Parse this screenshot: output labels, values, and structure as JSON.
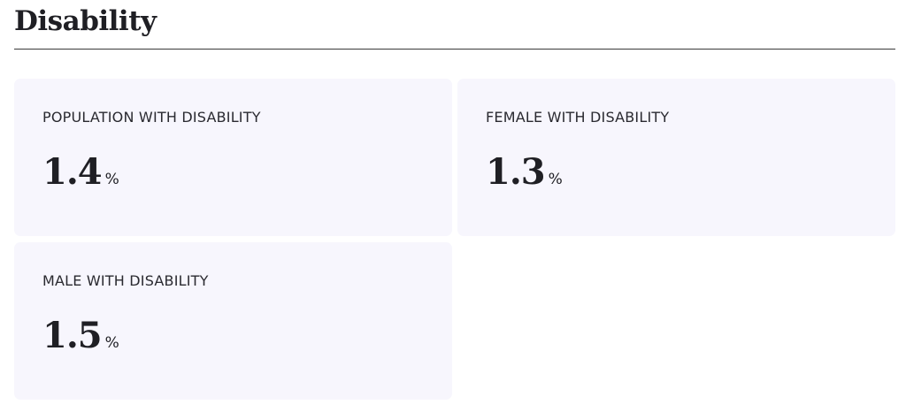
{
  "header": {
    "title": "Disability"
  },
  "cards": [
    {
      "label": "POPULATION WITH DISABILITY",
      "value": "1.4",
      "unit": "%"
    },
    {
      "label": "FEMALE WITH DISABILITY",
      "value": "1.3",
      "unit": "%"
    },
    {
      "label": "MALE WITH DISABILITY",
      "value": "1.5",
      "unit": "%"
    }
  ]
}
